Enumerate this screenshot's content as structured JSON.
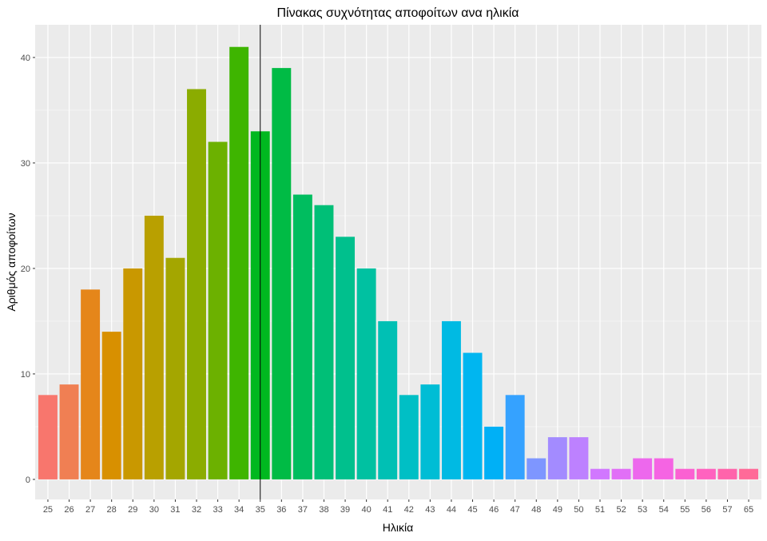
{
  "chart_data": {
    "type": "bar",
    "title": "Πίνακας συχνότητας αποφοίτων ανα ηλικία",
    "xlabel": "Ηλικία",
    "ylabel": "Αριθμός αποφοίτων",
    "categories": [
      "25",
      "26",
      "27",
      "28",
      "29",
      "30",
      "31",
      "32",
      "33",
      "34",
      "35",
      "36",
      "37",
      "38",
      "39",
      "40",
      "41",
      "42",
      "43",
      "44",
      "45",
      "46",
      "47",
      "48",
      "49",
      "50",
      "51",
      "52",
      "53",
      "54",
      "55",
      "56",
      "57",
      "65"
    ],
    "values": [
      8,
      9,
      18,
      14,
      20,
      25,
      21,
      37,
      32,
      41,
      33,
      39,
      27,
      26,
      23,
      20,
      15,
      8,
      9,
      15,
      12,
      5,
      8,
      2,
      4,
      4,
      1,
      1,
      2,
      2,
      1,
      1,
      1,
      1
    ],
    "colors": [
      "#F8766D",
      "#F07F53",
      "#E5861A",
      "#D89000",
      "#C99800",
      "#B9A000",
      "#A4A600",
      "#8BAC00",
      "#6CB100",
      "#3EB500",
      "#00B81F",
      "#00BB45",
      "#00BD5F",
      "#00BF77",
      "#00C08D",
      "#00C1A1",
      "#00C0B4",
      "#00BFC5",
      "#00BDD5",
      "#00BAE3",
      "#00B6F0",
      "#00B0F6",
      "#35A2FF",
      "#7E96FF",
      "#A38BFF",
      "#BD81FF",
      "#D177FF",
      "#E16FF7",
      "#ED68ED",
      "#F564E3",
      "#FB61D2",
      "#FF62BF",
      "#FF64AB",
      "#FF6A98"
    ],
    "yticks": [
      0,
      10,
      20,
      30,
      40
    ],
    "ylim": [
      -1.9,
      43.1
    ],
    "reference_line_x": "35",
    "legend": "none",
    "grid": true
  }
}
